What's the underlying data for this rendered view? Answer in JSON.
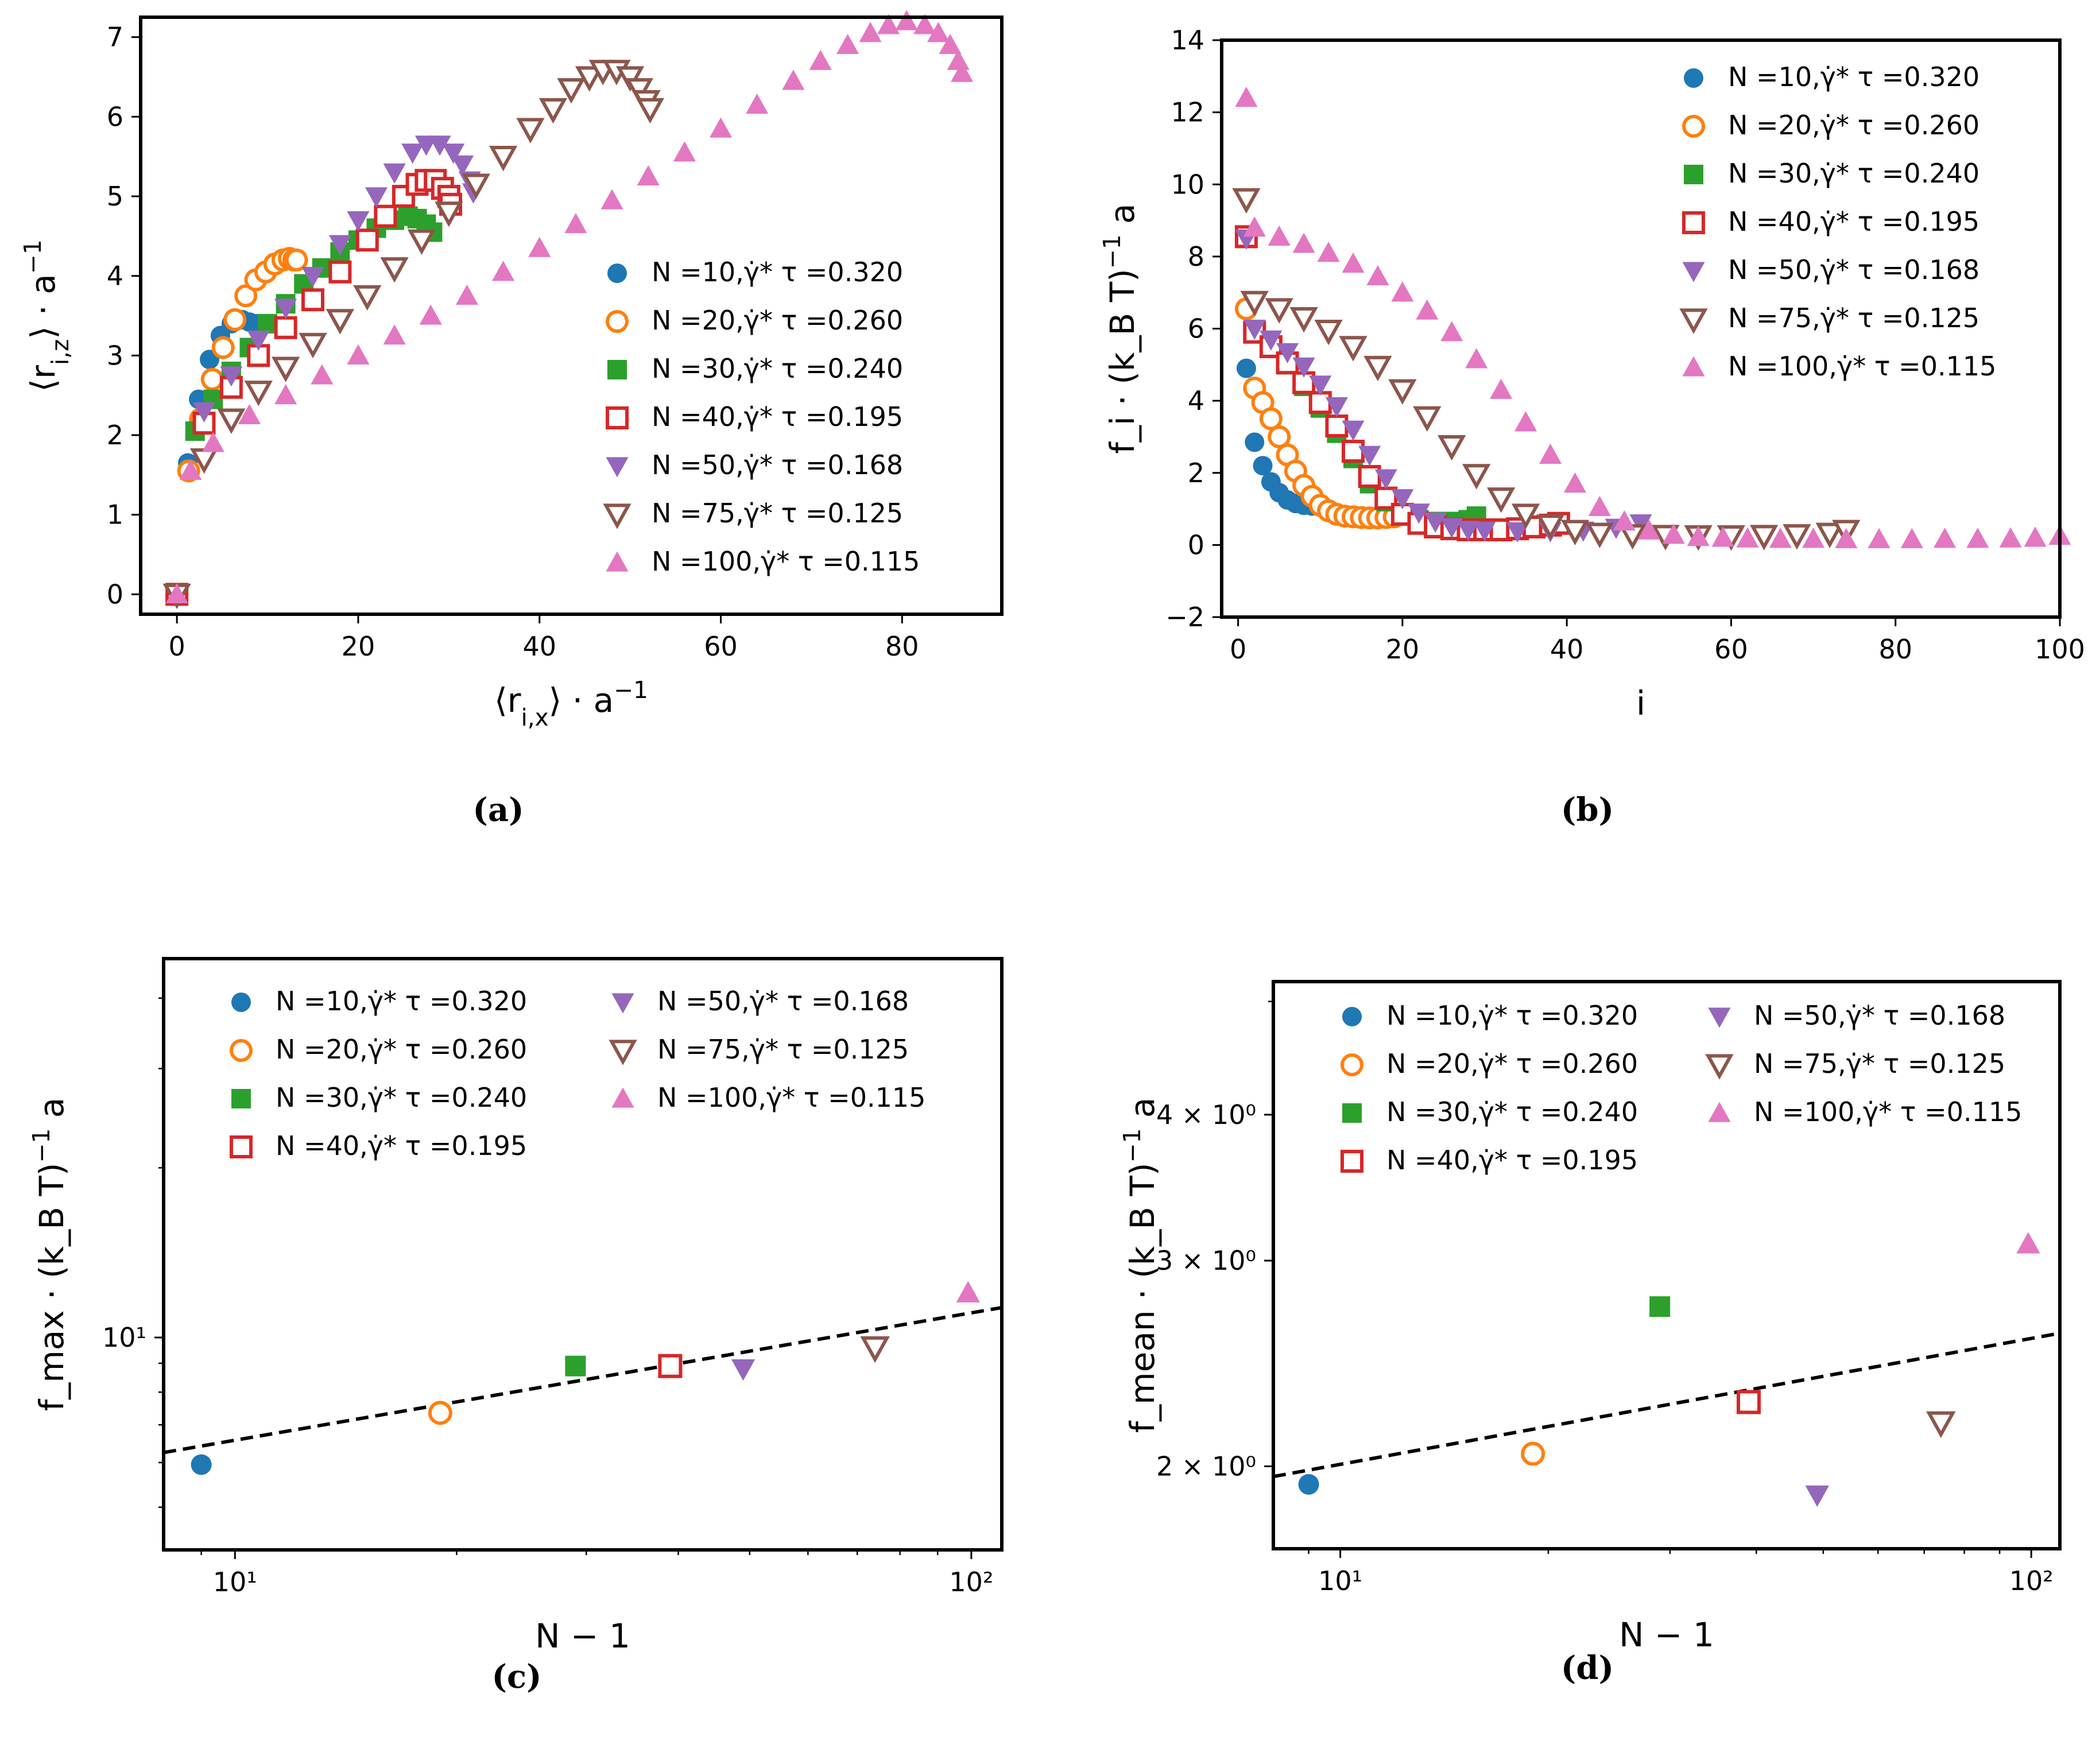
{
  "colors": {
    "N10": "#1f77b4",
    "N20": "#ff7f0e",
    "N30": "#2ca02c",
    "N40": "#d62728",
    "N50": "#9467bd",
    "N75": "#8c564b",
    "N100": "#e377c2",
    "fit": "#000000"
  },
  "legend_entries": [
    "N =10,γ̇* τ =0.320",
    "N =20,γ̇* τ =0.260",
    "N =30,γ̇* τ =0.240",
    "N =40,γ̇* τ =0.195",
    "N =50,γ̇* τ =0.168",
    "N =75,γ̇* τ =0.125",
    "N =100,γ̇* τ =0.115"
  ],
  "chart_data": [
    {
      "panel": "a",
      "type": "scatter",
      "caption": "(a)",
      "xlabel": "⟨r_{i,x}⟩ · a^{−1}",
      "ylabel": "⟨r_{i,z}⟩ · a^{−1}",
      "xlim": [
        -4,
        91
      ],
      "ylim": [
        -0.25,
        7.25
      ],
      "xticks": [
        0,
        20,
        40,
        60,
        80
      ],
      "yticks": [
        0,
        1,
        2,
        3,
        4,
        5,
        6,
        7
      ],
      "legend_position": "lower-right",
      "series": [
        {
          "key": "N10",
          "marker": "circle",
          "filled": true,
          "x": [
            0,
            1.2,
            2.4,
            3.6,
            4.8,
            6,
            7.2,
            8,
            8.5,
            8.9
          ],
          "y": [
            0,
            1.65,
            2.45,
            2.95,
            3.25,
            3.4,
            3.45,
            3.42,
            3.4,
            3.4
          ]
        },
        {
          "key": "N20",
          "marker": "circle",
          "filled": false,
          "x": [
            0,
            1.3,
            2.6,
            3.9,
            5.1,
            6.4,
            7.6,
            8.7,
            9.8,
            10.8,
            11.7,
            12.4,
            12.9,
            13.2
          ],
          "y": [
            0,
            1.55,
            2.2,
            2.7,
            3.1,
            3.45,
            3.75,
            3.95,
            4.05,
            4.15,
            4.2,
            4.22,
            4.2,
            4.2
          ]
        },
        {
          "key": "N30",
          "marker": "square",
          "filled": true,
          "x": [
            0,
            2,
            4,
            6,
            8,
            10,
            12,
            14,
            16,
            18,
            20,
            22,
            24,
            25.5,
            26.5,
            27.5,
            28.2
          ],
          "y": [
            0,
            2.05,
            2.45,
            2.8,
            3.1,
            3.4,
            3.65,
            3.9,
            4.1,
            4.3,
            4.45,
            4.6,
            4.7,
            4.75,
            4.72,
            4.65,
            4.55
          ]
        },
        {
          "key": "N40",
          "marker": "square",
          "filled": false,
          "x": [
            0,
            3,
            6,
            9,
            12,
            15,
            18,
            21,
            23,
            25,
            26.5,
            27.5,
            28.5,
            29.3,
            30,
            30.2
          ],
          "y": [
            0,
            2.15,
            2.6,
            3.0,
            3.35,
            3.7,
            4.05,
            4.45,
            4.75,
            5.0,
            5.15,
            5.2,
            5.2,
            5.1,
            5.0,
            4.9
          ]
        },
        {
          "key": "N50",
          "marker": "triangle-down",
          "filled": true,
          "x": [
            0,
            3,
            6,
            9,
            12,
            15,
            18,
            20,
            22,
            24,
            26,
            27.5,
            29,
            30.5,
            31.5,
            32.3,
            32.7
          ],
          "y": [
            0,
            2.3,
            2.75,
            3.2,
            3.6,
            4.0,
            4.4,
            4.7,
            5.0,
            5.3,
            5.55,
            5.65,
            5.65,
            5.55,
            5.4,
            5.2,
            5.05
          ]
        },
        {
          "key": "N75",
          "marker": "triangle-down",
          "filled": false,
          "x": [
            0,
            3,
            6,
            9,
            12,
            15,
            18,
            21,
            24,
            27,
            30,
            33,
            36,
            39,
            41.5,
            43.5,
            45.5,
            47,
            48.5,
            50,
            51,
            51.8,
            52.2
          ],
          "y": [
            0,
            1.7,
            2.2,
            2.55,
            2.85,
            3.15,
            3.45,
            3.75,
            4.1,
            4.45,
            4.8,
            5.15,
            5.5,
            5.85,
            6.1,
            6.35,
            6.5,
            6.58,
            6.58,
            6.5,
            6.35,
            6.2,
            6.1
          ]
        },
        {
          "key": "N100",
          "marker": "triangle-up",
          "filled": true,
          "x": [
            0,
            1.5,
            4,
            8,
            12,
            16,
            20,
            24,
            28,
            32,
            36,
            40,
            44,
            48,
            52,
            56,
            60,
            64,
            68,
            71,
            74,
            76.5,
            78.5,
            80.5,
            82.5,
            84,
            85.3,
            86.2,
            86.6
          ],
          "y": [
            0,
            1.55,
            1.9,
            2.25,
            2.5,
            2.75,
            3.0,
            3.25,
            3.5,
            3.75,
            4.05,
            4.35,
            4.65,
            4.95,
            5.25,
            5.55,
            5.85,
            6.15,
            6.45,
            6.7,
            6.9,
            7.05,
            7.15,
            7.2,
            7.15,
            7.05,
            6.9,
            6.7,
            6.55
          ]
        }
      ]
    },
    {
      "panel": "b",
      "type": "scatter",
      "caption": "(b)",
      "xlabel": "i",
      "ylabel": "f_i · (k_B T)^{−1} a",
      "xlim": [
        -2,
        100
      ],
      "ylim": [
        -2,
        14
      ],
      "xticks": [
        0,
        20,
        40,
        60,
        80,
        100
      ],
      "yticks": [
        -2,
        0,
        2,
        4,
        6,
        8,
        10,
        12,
        14
      ],
      "legend_position": "upper-right",
      "series": [
        {
          "key": "N10",
          "marker": "circle",
          "filled": true,
          "x": [
            1,
            2,
            3,
            4,
            5,
            6,
            7,
            8,
            9
          ],
          "y": [
            4.9,
            2.85,
            2.2,
            1.75,
            1.45,
            1.25,
            1.15,
            1.1,
            1.08
          ]
        },
        {
          "key": "N20",
          "marker": "circle",
          "filled": false,
          "x": [
            1,
            2,
            3,
            4,
            5,
            6,
            7,
            8,
            9,
            10,
            11,
            12,
            13,
            14,
            15,
            16,
            17,
            18,
            19
          ],
          "y": [
            6.55,
            4.35,
            3.95,
            3.5,
            3.0,
            2.5,
            2.05,
            1.65,
            1.35,
            1.1,
            0.95,
            0.85,
            0.8,
            0.78,
            0.76,
            0.75,
            0.75,
            0.76,
            0.78
          ]
        },
        {
          "key": "N30",
          "marker": "square",
          "filled": true,
          "x": [
            1,
            2,
            4,
            6,
            8,
            10,
            12,
            14,
            16,
            18,
            20,
            22,
            24,
            26,
            28,
            29
          ],
          "y": [
            8.5,
            5.9,
            5.5,
            5.0,
            4.4,
            3.8,
            3.1,
            2.4,
            1.7,
            1.2,
            0.85,
            0.7,
            0.65,
            0.65,
            0.7,
            0.8
          ]
        },
        {
          "key": "N40",
          "marker": "square",
          "filled": false,
          "x": [
            1,
            2,
            4,
            6,
            8,
            10,
            12,
            14,
            16,
            18,
            20,
            22,
            24,
            26,
            28,
            30,
            32,
            34,
            36,
            38,
            39
          ],
          "y": [
            8.55,
            5.9,
            5.5,
            5.05,
            4.5,
            3.95,
            3.3,
            2.6,
            1.9,
            1.3,
            0.85,
            0.6,
            0.5,
            0.45,
            0.42,
            0.42,
            0.42,
            0.45,
            0.5,
            0.55,
            0.6
          ]
        },
        {
          "key": "N50",
          "marker": "triangle-down",
          "filled": true,
          "x": [
            1,
            2,
            4,
            6,
            8,
            10,
            12,
            14,
            16,
            18,
            20,
            22,
            24,
            26,
            28,
            30,
            34,
            38,
            42,
            46,
            49
          ],
          "y": [
            8.5,
            6.0,
            5.7,
            5.35,
            4.95,
            4.45,
            3.85,
            3.2,
            2.5,
            1.85,
            1.3,
            0.9,
            0.65,
            0.5,
            0.42,
            0.4,
            0.38,
            0.38,
            0.4,
            0.48,
            0.6
          ]
        },
        {
          "key": "N75",
          "marker": "triangle-down",
          "filled": false,
          "x": [
            1,
            2,
            5,
            8,
            11,
            14,
            17,
            20,
            23,
            26,
            29,
            32,
            35,
            38,
            41,
            44,
            48,
            52,
            56,
            60,
            64,
            68,
            72,
            74
          ],
          "y": [
            9.6,
            6.75,
            6.55,
            6.3,
            5.95,
            5.5,
            4.95,
            4.3,
            3.55,
            2.75,
            1.95,
            1.3,
            0.85,
            0.55,
            0.4,
            0.32,
            0.28,
            0.26,
            0.25,
            0.25,
            0.26,
            0.28,
            0.32,
            0.4
          ]
        },
        {
          "key": "N100",
          "marker": "triangle-up",
          "filled": true,
          "x": [
            1,
            2,
            5,
            8,
            11,
            14,
            17,
            20,
            23,
            26,
            29,
            32,
            35,
            38,
            41,
            44,
            47,
            50,
            53,
            56,
            59,
            62,
            66,
            70,
            74,
            78,
            82,
            86,
            90,
            94,
            97,
            100
          ],
          "y": [
            12.4,
            8.8,
            8.55,
            8.35,
            8.1,
            7.8,
            7.45,
            7.0,
            6.5,
            5.9,
            5.15,
            4.3,
            3.4,
            2.5,
            1.7,
            1.05,
            0.65,
            0.4,
            0.28,
            0.22,
            0.2,
            0.18,
            0.17,
            0.17,
            0.16,
            0.16,
            0.16,
            0.17,
            0.17,
            0.18,
            0.2,
            0.25
          ]
        }
      ]
    },
    {
      "panel": "c",
      "type": "scatter",
      "caption": "(c)",
      "xlabel": "N − 1",
      "ylabel": "f_max · (k_B T)^{−1} a",
      "xscale": "log",
      "yscale": "log",
      "xlim": [
        8,
        110
      ],
      "ylim": [
        4.2,
        47
      ],
      "xticks": [
        10,
        100
      ],
      "xtick_labels": [
        "10¹",
        "10²"
      ],
      "yticks": [
        10
      ],
      "ytick_labels": [
        "10¹"
      ],
      "legend_position": "upper-center",
      "points": [
        {
          "key": "N10",
          "marker": "circle",
          "filled": true,
          "x": 9,
          "y": 5.95
        },
        {
          "key": "N20",
          "marker": "circle",
          "filled": false,
          "x": 19,
          "y": 7.35
        },
        {
          "key": "N30",
          "marker": "square",
          "filled": true,
          "x": 29,
          "y": 8.9
        },
        {
          "key": "N40",
          "marker": "square",
          "filled": false,
          "x": 39,
          "y": 8.9
        },
        {
          "key": "N50",
          "marker": "triangle-down",
          "filled": true,
          "x": 49,
          "y": 8.8
        },
        {
          "key": "N75",
          "marker": "triangle-down",
          "filled": false,
          "x": 74,
          "y": 9.6
        },
        {
          "key": "N100",
          "marker": "triangle-up",
          "filled": true,
          "x": 99,
          "y": 12.0
        }
      ],
      "fit_line": {
        "style": "dashed",
        "x": [
          8,
          110
        ],
        "y": [
          6.25,
          11.3
        ]
      }
    },
    {
      "panel": "d",
      "type": "scatter",
      "caption": "(d)",
      "xlabel": "N − 1",
      "ylabel": "f_mean · (k_B T)^{−1} a",
      "xscale": "log",
      "yscale": "log",
      "xlim": [
        8,
        110
      ],
      "ylim": [
        1.7,
        5.2
      ],
      "xticks": [
        10,
        100
      ],
      "xtick_labels": [
        "10¹",
        "10²"
      ],
      "yticks": [
        2,
        3,
        4
      ],
      "ytick_labels": [
        "2 × 10⁰",
        "3 × 10⁰",
        "4 × 10⁰"
      ],
      "legend_position": "upper-center",
      "points": [
        {
          "key": "N10",
          "marker": "circle",
          "filled": true,
          "x": 9,
          "y": 1.93
        },
        {
          "key": "N20",
          "marker": "circle",
          "filled": false,
          "x": 19,
          "y": 2.05
        },
        {
          "key": "N30",
          "marker": "square",
          "filled": true,
          "x": 29,
          "y": 2.74
        },
        {
          "key": "N40",
          "marker": "square",
          "filled": false,
          "x": 39,
          "y": 2.27
        },
        {
          "key": "N50",
          "marker": "triangle-down",
          "filled": true,
          "x": 49,
          "y": 1.89
        },
        {
          "key": "N75",
          "marker": "triangle-down",
          "filled": false,
          "x": 74,
          "y": 2.18
        },
        {
          "key": "N100",
          "marker": "triangle-up",
          "filled": true,
          "x": 99,
          "y": 3.1
        }
      ],
      "fit_line": {
        "style": "dashed",
        "x": [
          8,
          110
        ],
        "y": [
          1.96,
          2.6
        ]
      }
    }
  ]
}
